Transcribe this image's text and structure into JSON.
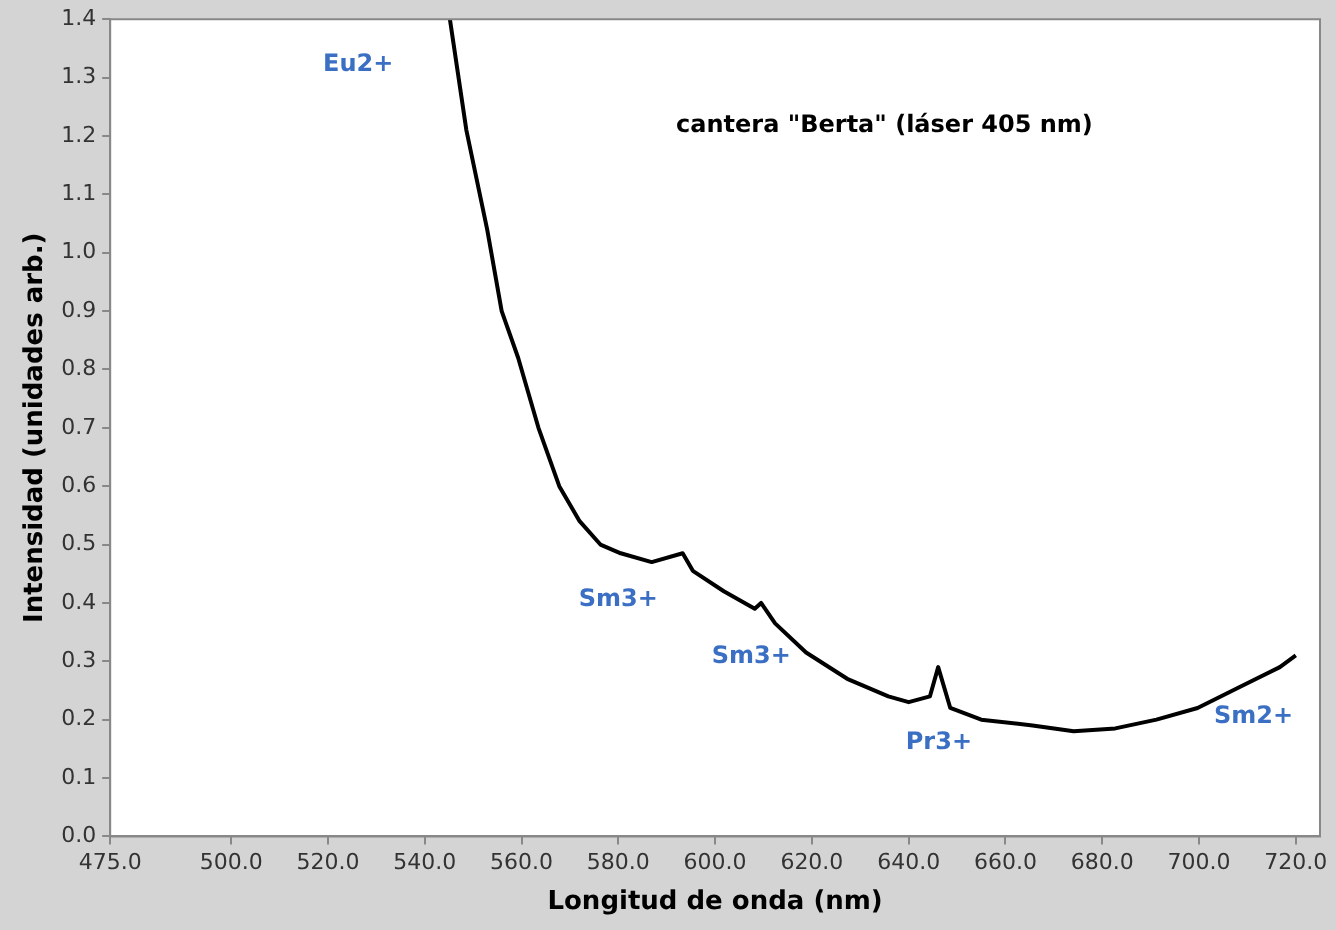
{
  "chart_data": {
    "type": "line",
    "xlabel": "Longitud de onda (nm)",
    "ylabel": "Intensidad (unidades arb.)",
    "x": [
      545.2,
      548.6,
      552.9,
      555.9,
      559.3,
      563.5,
      567.8,
      572,
      576.3,
      580.5,
      586.9,
      593.3,
      595.4,
      601.8,
      608.2,
      609.5,
      612.4,
      618.8,
      627.3,
      635.8,
      640,
      644.4,
      646.1,
      648.6,
      655,
      665.6,
      674.1,
      682.7,
      691.2,
      699.7,
      708.2,
      716.7,
      720
    ],
    "series": [
      {
        "color": "#000000",
        "values": [
          1.4,
          1.21,
          1.04,
          0.9,
          0.82,
          0.7,
          0.6,
          0.54,
          0.5,
          0.485,
          0.47,
          0.485,
          0.455,
          0.42,
          0.39,
          0.4,
          0.365,
          0.315,
          0.27,
          0.24,
          0.23,
          0.24,
          0.29,
          0.22,
          0.2,
          0.19,
          0.18,
          0.185,
          0.2,
          0.22,
          0.255,
          0.29,
          0.31
        ]
      }
    ],
    "xlim": [
      475,
      725
    ],
    "xticks": [
      {
        "value": 475,
        "label": "475.0"
      },
      {
        "value": 500,
        "label": "500.0"
      },
      {
        "value": 520,
        "label": "520.0"
      },
      {
        "value": 540,
        "label": "540.0"
      },
      {
        "value": 560,
        "label": "560.0"
      },
      {
        "value": 580,
        "label": "580.0"
      },
      {
        "value": 600,
        "label": "600.0"
      },
      {
        "value": 620,
        "label": "620.0"
      },
      {
        "value": 640,
        "label": "640.0"
      },
      {
        "value": 660,
        "label": "660.0"
      },
      {
        "value": 680,
        "label": "680.0"
      },
      {
        "value": 700,
        "label": "700.0"
      },
      {
        "value": 720,
        "label": "720.0"
      }
    ],
    "ylim": [
      0,
      1.4
    ],
    "yticks": [
      {
        "value": 0,
        "label": "0.0"
      },
      {
        "value": 0.1,
        "label": "0.1"
      },
      {
        "value": 0.2,
        "label": "0.2"
      },
      {
        "value": 0.3,
        "label": "0.3"
      },
      {
        "value": 0.4,
        "label": "0.4"
      },
      {
        "value": 0.5,
        "label": "0.5"
      },
      {
        "value": 0.6,
        "label": "0.6"
      },
      {
        "value": 0.7,
        "label": "0.7"
      },
      {
        "value": 0.8,
        "label": "0.8"
      },
      {
        "value": 0.9,
        "label": "0.9"
      },
      {
        "value": 1.0,
        "label": "1.0"
      },
      {
        "value": 1.1,
        "label": "1.1"
      },
      {
        "value": 1.2,
        "label": "1.2"
      },
      {
        "value": 1.3,
        "label": "1.3"
      },
      {
        "value": 1.4,
        "label": "1.4"
      }
    ],
    "annotations": [
      "cantera \"Berta\" (láser 405 nm)",
      "Eu2+",
      "Sm3+",
      "Sm3+",
      "Pr3+",
      "Sm2+"
    ],
    "grid": false,
    "legend": false,
    "marker": "none",
    "line_style": "solid"
  }
}
